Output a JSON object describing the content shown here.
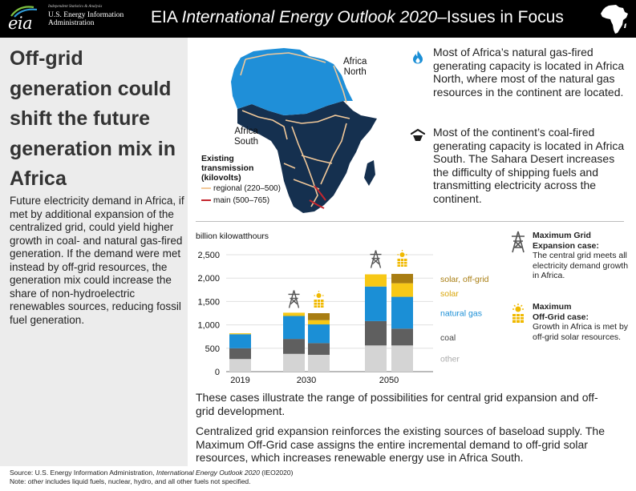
{
  "header": {
    "logo_word": "eia",
    "logo_tagline": "Independent Statistics & Analysis",
    "logo_name_1": "U.S. Energy Information",
    "logo_name_2": "Administration",
    "title_prefix": "EIA ",
    "title_italic": "International Energy Outlook 2020",
    "title_suffix": "–Issues in Focus"
  },
  "left": {
    "headline": "Off-grid generation could shift the future generation mix in Africa",
    "lead": "Future electricity demand in Africa, if met by additional expansion of the centralized grid, could yield higher growth in coal- and natural gas-fired generation. If the demand were met instead by off-grid resources, the generation mix could increase the share of non-hydroelectric renewables sources, reducing fossil fuel generation."
  },
  "map": {
    "north_label_1": "Africa",
    "north_label_2": "North",
    "south_label_1": "Africa",
    "south_label_2": "South",
    "legend_title_1": "Existing",
    "legend_title_2": "transmission",
    "legend_title_3": "(kilovolts)",
    "legend_regional": "regional (220–500)",
    "legend_main": "main (500–765)",
    "colors": {
      "north": "#1f8fd8",
      "south": "#15304f",
      "regional": "#f2c99a",
      "main": "#c4262e"
    }
  },
  "notes": {
    "gas": "Most of Africa’s natural gas-fired generating capacity is located in Africa North, where most of the natural gas resources in the continent are located.",
    "coal": "Most of the continent’s coal-fired generating capacity is located in Africa South. The Sahara Desert increases the difficulty of shipping fuels and transmitting electricity across the continent."
  },
  "chart_data": {
    "type": "bar",
    "stacked": true,
    "unit_label": "billion kilowatthours",
    "yticks": [
      "2,500",
      "2,000",
      "1,500",
      "1,000",
      "500",
      "0"
    ],
    "ylim": [
      0,
      2500
    ],
    "groups": [
      "2019",
      "2030",
      "2050"
    ],
    "bars": [
      {
        "group": "2019",
        "case": "reference",
        "values": {
          "other": 270,
          "coal": 230,
          "natural_gas": 300,
          "solar": 20,
          "solar_offgrid": 0
        }
      },
      {
        "group": "2030",
        "case": "max_grid",
        "values": {
          "other": 380,
          "coal": 320,
          "natural_gas": 490,
          "solar": 70,
          "solar_offgrid": 0
        }
      },
      {
        "group": "2030",
        "case": "max_offgrid",
        "values": {
          "other": 360,
          "coal": 250,
          "natural_gas": 400,
          "solar": 90,
          "solar_offgrid": 150
        }
      },
      {
        "group": "2050",
        "case": "max_grid",
        "values": {
          "other": 560,
          "coal": 520,
          "natural_gas": 740,
          "solar": 260,
          "solar_offgrid": 0
        }
      },
      {
        "group": "2050",
        "case": "max_offgrid",
        "values": {
          "other": 560,
          "coal": 360,
          "natural_gas": 680,
          "solar": 290,
          "solar_offgrid": 200
        }
      }
    ],
    "series_labels": {
      "solar_offgrid": "solar, off-grid",
      "solar": "solar",
      "natural_gas": "natural gas",
      "coal": "coal",
      "other": "other"
    },
    "series_colors": {
      "solar_offgrid": "#a87d12",
      "solar": "#f7c816",
      "natural_gas": "#1b8fd6",
      "coal": "#5f5f5f",
      "other": "#d4d4d4"
    },
    "label_colors": {
      "solar_offgrid": "#a87d12",
      "solar": "#d9a60a",
      "natural_gas": "#1b8fd6",
      "coal": "#444444",
      "other": "#aaaaaa"
    }
  },
  "cases": {
    "grid_title_1": "Maximum Grid",
    "grid_title_2": "Expansion case:",
    "grid_text": "The central grid meets all electricity demand growth in Africa.",
    "offgrid_title_1": "Maximum",
    "offgrid_title_2": "Off-Grid case:",
    "offgrid_text": "Growth in Africa is met by off-grid solar resources."
  },
  "bottom": {
    "p1": "These cases illustrate the range of possibilities for central grid expansion and off-grid development.",
    "p2": "Centralized grid expansion reinforces the existing sources of baseload supply. The Maximum Off-Grid case assigns the entire incremental demand to off-grid solar resources, which increases renewable energy use in Africa South."
  },
  "footer": {
    "source_prefix": "Source: U.S. Energy Information Administration, ",
    "source_italic": "International Energy Outlook 2020",
    "source_suffix": " (IEO2020)",
    "note_prefix": "Note: ",
    "note_italic": "other",
    "note_suffix": " includes liquid fuels, nuclear, hydro, and all other fuels not specified."
  }
}
